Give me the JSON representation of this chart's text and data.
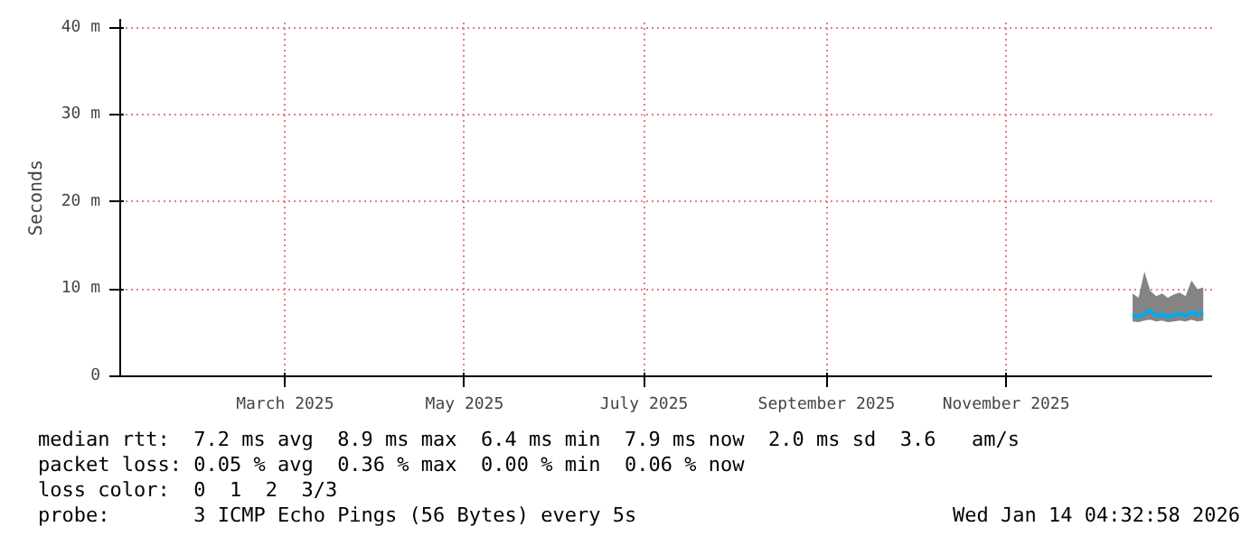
{
  "chart_data": {
    "type": "line",
    "ylabel": "Seconds",
    "x": [
      "2025-12-14",
      "2025-12-16",
      "2025-12-18",
      "2025-12-20",
      "2025-12-22",
      "2025-12-24",
      "2025-12-26",
      "2025-12-28",
      "2025-12-30",
      "2026-01-01",
      "2026-01-03",
      "2026-01-05",
      "2026-01-07"
    ],
    "series": [
      {
        "color": "#00aaee",
        "values": [
          7.0,
          6.8,
          7.2,
          7.5,
          6.9,
          7.1,
          6.8,
          7.0,
          7.2,
          6.9,
          7.4,
          7.1,
          7.3
        ],
        "lower": [
          6.3,
          6.2,
          6.4,
          6.5,
          6.3,
          6.4,
          6.2,
          6.3,
          6.4,
          6.3,
          6.5,
          6.3,
          6.4
        ],
        "upper": [
          9.5,
          9.0,
          12.0,
          9.8,
          9.2,
          9.5,
          9.0,
          9.4,
          9.6,
          9.2,
          11.0,
          10.0,
          10.2
        ]
      }
    ],
    "xlim": [
      "2025-01-04",
      "2026-01-10"
    ],
    "xticks": [
      {
        "value": "2025-03-01",
        "label": "March 2025"
      },
      {
        "value": "2025-05-01",
        "label": "May 2025"
      },
      {
        "value": "2025-07-01",
        "label": "July 2025"
      },
      {
        "value": "2025-09-01",
        "label": "September 2025"
      },
      {
        "value": "2025-11-01",
        "label": "November 2025"
      }
    ],
    "ylim": [
      0,
      41
    ],
    "yticks": [
      0,
      {
        "value": 10,
        "label": "10 m"
      },
      {
        "value": 20,
        "label": "20 m"
      },
      {
        "value": 30,
        "label": "30 m"
      },
      {
        "value": 40,
        "label": "40 m"
      }
    ],
    "grid": true,
    "marker": "none",
    "line_style": "solid",
    "annotations": [
      "median rtt:  7.2 ms avg  8.9 ms max  6.4 ms min  7.9 ms now  2.0 ms sd  3.6   am/s",
      "packet loss: 0.05 % avg  0.36 % max  0.00 % min  0.06 % now",
      "loss color:  0  1  2  3/3",
      "probe:       3 ICMP Echo Pings (56 Bytes) every 5s",
      "Wed Jan 14 04:32:58 2026"
    ]
  }
}
